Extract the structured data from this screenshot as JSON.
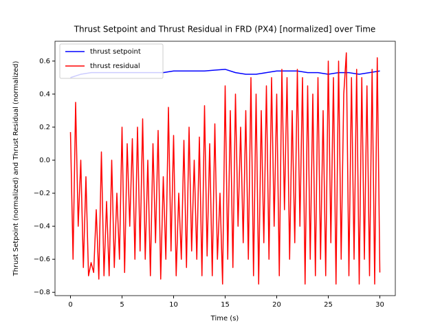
{
  "chart_data": {
    "type": "line",
    "title": "Thrust Setpoint and Thrust Residual in FRD (PX4) [normalized] over Time",
    "x_label": "Time (s)",
    "y_label": "Thrust Setpoint (normalized) and Thrust Residual (normalized)",
    "xlim": [
      -1.5,
      31.5
    ],
    "ylim": [
      -0.82,
      0.72
    ],
    "xticks": [
      0,
      5,
      10,
      15,
      20,
      25,
      30
    ],
    "yticks": [
      {
        "value": -0.8,
        "label": "−0.8"
      },
      {
        "value": -0.6,
        "label": "−0.6"
      },
      {
        "value": -0.4,
        "label": "−0.4"
      },
      {
        "value": -0.2,
        "label": "−0.2"
      },
      {
        "value": 0,
        "label": "0.0"
      },
      0.2,
      0.4,
      0.6
    ],
    "legend": "upper left",
    "series": [
      {
        "name": "thrust setpoint",
        "color": "#0000ff",
        "x": [
          0,
          1,
          2,
          3,
          4,
          5,
          6,
          7,
          8,
          9,
          10,
          11,
          12,
          13,
          14,
          15,
          16,
          17,
          18,
          19,
          20,
          21,
          22,
          23,
          24,
          25,
          26,
          27,
          28,
          29,
          30
        ],
        "values": [
          0.5,
          0.52,
          0.53,
          0.53,
          0.53,
          0.53,
          0.53,
          0.53,
          0.53,
          0.53,
          0.54,
          0.54,
          0.54,
          0.54,
          0.545,
          0.55,
          0.53,
          0.52,
          0.52,
          0.53,
          0.54,
          0.54,
          0.54,
          0.53,
          0.53,
          0.52,
          0.53,
          0.53,
          0.52,
          0.53,
          0.54
        ]
      },
      {
        "name": "thrust residual",
        "color": "#ff0000",
        "x": [
          0,
          0.25,
          0.5,
          0.75,
          1,
          1.25,
          1.5,
          1.75,
          2,
          2.25,
          2.5,
          2.75,
          3,
          3.25,
          3.5,
          3.75,
          4,
          4.25,
          4.5,
          4.75,
          5,
          5.25,
          5.5,
          5.75,
          6,
          6.25,
          6.5,
          6.75,
          7,
          7.25,
          7.5,
          7.75,
          8,
          8.25,
          8.5,
          8.75,
          9,
          9.25,
          9.5,
          9.75,
          10,
          10.25,
          10.5,
          10.75,
          11,
          11.25,
          11.5,
          11.75,
          12,
          12.25,
          12.5,
          12.75,
          13,
          13.25,
          13.5,
          13.75,
          14,
          14.25,
          14.5,
          14.75,
          15,
          15.25,
          15.5,
          15.75,
          16,
          16.25,
          16.5,
          16.75,
          17,
          17.25,
          17.5,
          17.75,
          18,
          18.25,
          18.5,
          18.75,
          19,
          19.25,
          19.5,
          19.75,
          20,
          20.25,
          20.5,
          20.75,
          21,
          21.25,
          21.5,
          21.75,
          22,
          22.25,
          22.5,
          22.75,
          23,
          23.25,
          23.5,
          23.75,
          24,
          24.25,
          24.5,
          24.75,
          25,
          25.25,
          25.5,
          25.75,
          26,
          26.25,
          26.5,
          26.75,
          27,
          27.25,
          27.5,
          27.75,
          28,
          28.25,
          28.5,
          28.75,
          29,
          29.25,
          29.5,
          29.75,
          30
        ],
        "values": [
          0.17,
          -0.6,
          0.35,
          -0.4,
          0.0,
          -0.65,
          -0.1,
          -0.7,
          -0.62,
          -0.68,
          -0.3,
          -0.72,
          0.05,
          -0.7,
          -0.25,
          -0.7,
          0.0,
          -0.65,
          -0.2,
          -0.6,
          0.2,
          -0.68,
          0.1,
          -0.4,
          0.13,
          -0.6,
          0.2,
          -0.55,
          0.25,
          -0.6,
          0.0,
          -0.7,
          0.1,
          -0.5,
          0.18,
          -0.72,
          -0.1,
          -0.6,
          0.32,
          -0.55,
          0.15,
          -0.7,
          -0.2,
          -0.6,
          0.12,
          -0.65,
          0.2,
          -0.55,
          0.0,
          -0.6,
          0.14,
          -0.7,
          0.33,
          -0.58,
          0.1,
          -0.7,
          0.22,
          -0.6,
          -0.2,
          -0.75,
          0.45,
          -0.6,
          0.3,
          -0.65,
          0.4,
          -0.4,
          0.2,
          -0.5,
          0.3,
          -0.6,
          0.5,
          -0.7,
          0.4,
          -0.75,
          0.3,
          -0.5,
          0.45,
          -0.6,
          0.5,
          -0.4,
          0.4,
          -0.7,
          0.55,
          -0.3,
          0.5,
          -0.6,
          0.3,
          -0.5,
          0.55,
          -0.4,
          0.5,
          -0.75,
          0.45,
          -0.6,
          0.4,
          -0.7,
          0.5,
          -0.6,
          0.3,
          -0.7,
          0.6,
          -0.5,
          0.5,
          -0.75,
          0.6,
          -0.6,
          0.4,
          0.65,
          -0.7,
          0.5,
          -0.6,
          0.55,
          -0.75,
          0.5,
          -0.6,
          0.45,
          -0.7,
          0.55,
          -0.75,
          0.62,
          -0.68
        ]
      }
    ]
  }
}
